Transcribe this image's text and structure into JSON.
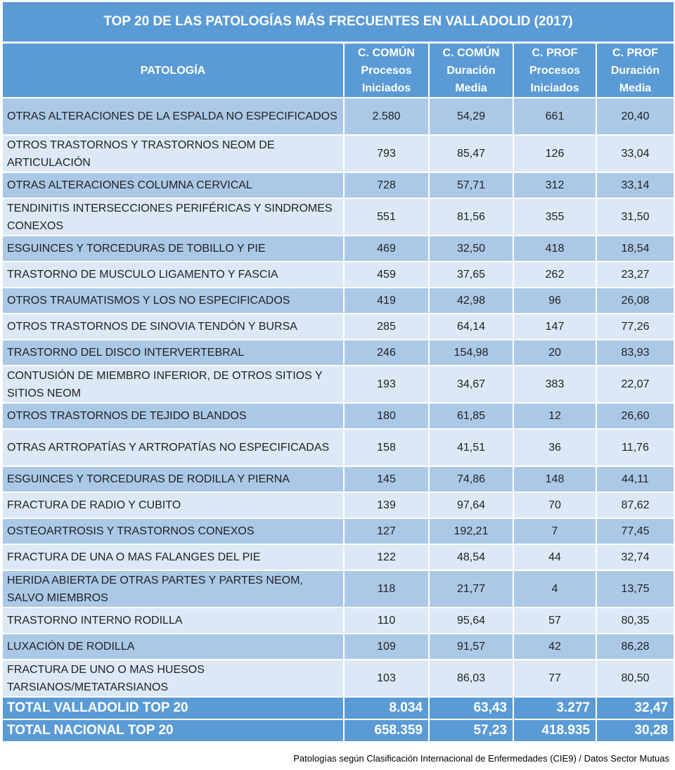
{
  "title": "TOP 20 DE LAS PATOLOGÍAS MÁS FRECUENTES EN VALLADOLID (2017)",
  "headers": [
    "PATOLOGÍA",
    "C. COMÚN Procesos Iniciados",
    "C. COMÚN Duración Media",
    "C. PROF Procesos Iniciados",
    "C. PROF Duración Media"
  ],
  "rows": [
    {
      "name": "OTRAS ALTERACIONES DE LA ESPALDA NO ESPECIFICADOS",
      "cc_proc": "2.580",
      "cc_dur": "54,29",
      "cp_proc": "661",
      "cp_dur": "20,40"
    },
    {
      "name": "OTROS TRASTORNOS Y TRASTORNOS NEOM DE ARTICULACIÓN",
      "cc_proc": "793",
      "cc_dur": "85,47",
      "cp_proc": "126",
      "cp_dur": "33,04"
    },
    {
      "name": "OTRAS ALTERACIONES COLUMNA CERVICAL",
      "cc_proc": "728",
      "cc_dur": "57,71",
      "cp_proc": "312",
      "cp_dur": "33,14"
    },
    {
      "name": "TENDINITIS INTERSECCIONES PERIFÉRICAS Y SINDROMES CONEXOS",
      "cc_proc": "551",
      "cc_dur": "81,56",
      "cp_proc": "355",
      "cp_dur": "31,50"
    },
    {
      "name": "ESGUINCES Y TORCEDURAS DE TOBILLO Y PIE",
      "cc_proc": "469",
      "cc_dur": "32,50",
      "cp_proc": "418",
      "cp_dur": "18,54"
    },
    {
      "name": "TRASTORNO DE MUSCULO LIGAMENTO Y FASCIA",
      "cc_proc": "459",
      "cc_dur": "37,65",
      "cp_proc": "262",
      "cp_dur": "23,27"
    },
    {
      "name": "OTROS TRAUMATISMOS Y LOS NO ESPECIFICADOS",
      "cc_proc": "419",
      "cc_dur": "42,98",
      "cp_proc": "96",
      "cp_dur": "26,08"
    },
    {
      "name": "OTROS TRASTORNOS DE SINOVIA TENDÓN Y BURSA",
      "cc_proc": "285",
      "cc_dur": "64,14",
      "cp_proc": "147",
      "cp_dur": "77,26"
    },
    {
      "name": "TRASTORNO DEL DISCO INTERVERTEBRAL",
      "cc_proc": "246",
      "cc_dur": "154,98",
      "cp_proc": "20",
      "cp_dur": "83,93"
    },
    {
      "name": "CONTUSIÓN DE MIEMBRO INFERIOR, DE OTROS SITIOS Y SITIOS NEOM",
      "cc_proc": "193",
      "cc_dur": "34,67",
      "cp_proc": "383",
      "cp_dur": "22,07"
    },
    {
      "name": "OTROS TRASTORNOS DE TEJIDO BLANDOS",
      "cc_proc": "180",
      "cc_dur": "61,85",
      "cp_proc": "12",
      "cp_dur": "26,60"
    },
    {
      "name": "OTRAS ARTROPATÍAS Y ARTROPATÍAS NO ESPECIFICADAS",
      "cc_proc": "158",
      "cc_dur": "41,51",
      "cp_proc": "36",
      "cp_dur": "11,76"
    },
    {
      "name": "ESGUINCES Y TORCEDURAS DE RODILLA Y PIERNA",
      "cc_proc": "145",
      "cc_dur": "74,86",
      "cp_proc": "148",
      "cp_dur": "44,11"
    },
    {
      "name": "FRACTURA DE RADIO Y CUBITO",
      "cc_proc": "139",
      "cc_dur": "97,64",
      "cp_proc": "70",
      "cp_dur": "87,62"
    },
    {
      "name": "OSTEOARTROSIS Y TRASTORNOS CONEXOS",
      "cc_proc": "127",
      "cc_dur": "192,21",
      "cp_proc": "7",
      "cp_dur": "77,45"
    },
    {
      "name": "FRACTURA DE UNA O MAS FALANGES DEL PIE",
      "cc_proc": "122",
      "cc_dur": "48,54",
      "cp_proc": "44",
      "cp_dur": "32,74"
    },
    {
      "name": "HERIDA ABIERTA DE OTRAS PARTES Y PARTES NEOM, SALVO MIEMBROS",
      "cc_proc": "118",
      "cc_dur": "21,77",
      "cp_proc": "4",
      "cp_dur": "13,75"
    },
    {
      "name": "TRASTORNO INTERNO RODILLA",
      "cc_proc": "110",
      "cc_dur": "95,64",
      "cp_proc": "57",
      "cp_dur": "80,35"
    },
    {
      "name": "LUXACIÓN DE RODILLA",
      "cc_proc": "109",
      "cc_dur": "91,57",
      "cp_proc": "42",
      "cp_dur": "86,28"
    },
    {
      "name": "FRACTURA DE UNO O MAS HUESOS TARSIANOS/METATARSIANOS",
      "cc_proc": "103",
      "cc_dur": "86,03",
      "cp_proc": "77",
      "cp_dur": "80,50"
    }
  ],
  "totals": [
    {
      "name": "TOTAL VALLADOLID TOP 20",
      "cc_proc": "8.034",
      "cc_dur": "63,43",
      "cp_proc": "3.277",
      "cp_dur": "32,47"
    },
    {
      "name": "TOTAL NACIONAL TOP 20",
      "cc_proc": "658.359",
      "cc_dur": "57,23",
      "cp_proc": "418.935",
      "cp_dur": "30,28"
    }
  ],
  "footnote": "Patologías según Clasificación Internacional de Enfermedades (CIE9) / Datos Sector Mutuas",
  "colors": {
    "header": "#5b9bd5",
    "row_dark": "#abc9e7",
    "row_light": "#dce8f5"
  }
}
